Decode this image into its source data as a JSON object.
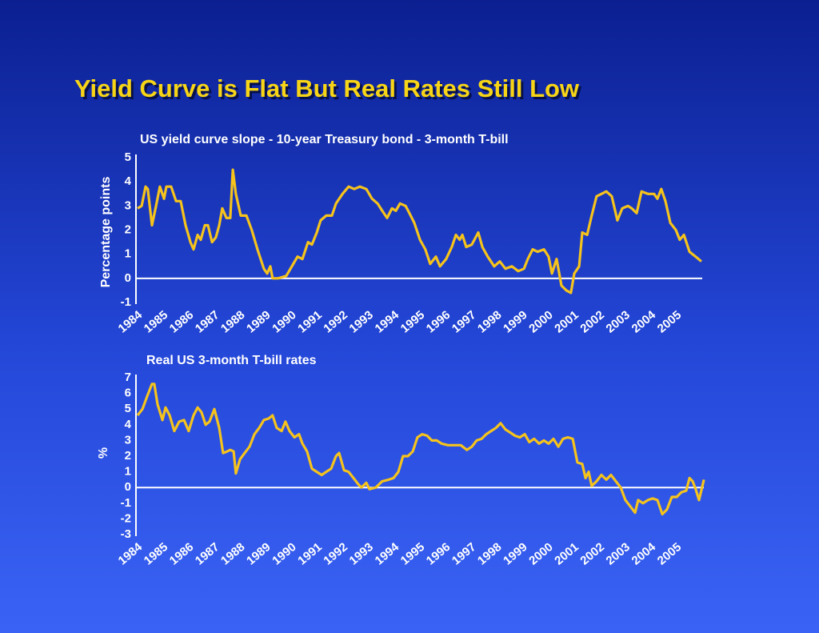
{
  "title": "Yield Curve is Flat But Real Rates Still Low",
  "chart_data": [
    {
      "type": "line",
      "title": "US yield curve slope - 10-year Treasury bond - 3-month T-bill",
      "ylabel": "Percentage points",
      "color": "#f5c31c",
      "xlim": [
        1984,
        2006.2
      ],
      "xticks": [
        1984,
        1985,
        1986,
        1987,
        1988,
        1989,
        1990,
        1991,
        1992,
        1993,
        1994,
        1995,
        1996,
        1997,
        1998,
        1999,
        2000,
        2001,
        2002,
        2003,
        2004,
        2005
      ],
      "ylim": [
        -1,
        5
      ],
      "yticks": [
        -1,
        0,
        1,
        2,
        3,
        4,
        5
      ],
      "x": [
        1984.0,
        1984.16,
        1984.31,
        1984.4,
        1984.56,
        1984.72,
        1984.87,
        1985.03,
        1985.12,
        1985.31,
        1985.5,
        1985.68,
        1985.87,
        1986.06,
        1986.18,
        1986.34,
        1986.46,
        1986.62,
        1986.74,
        1986.9,
        1987.05,
        1987.18,
        1987.3,
        1987.46,
        1987.61,
        1987.71,
        1987.83,
        1988.02,
        1988.24,
        1988.45,
        1988.67,
        1988.92,
        1989.05,
        1989.17,
        1989.26,
        1989.48,
        1989.79,
        1990.01,
        1990.23,
        1990.42,
        1990.64,
        1990.79,
        1990.98,
        1991.13,
        1991.35,
        1991.57,
        1991.73,
        1991.98,
        1992.22,
        1992.44,
        1992.66,
        1992.91,
        1993.13,
        1993.35,
        1993.53,
        1993.72,
        1993.91,
        1994.06,
        1994.22,
        1994.44,
        1994.59,
        1994.78,
        1995.0,
        1995.21,
        1995.4,
        1995.62,
        1995.78,
        1996.02,
        1996.24,
        1996.4,
        1996.55,
        1996.65,
        1996.8,
        1997.02,
        1997.27,
        1997.43,
        1997.64,
        1997.89,
        1998.11,
        1998.33,
        1998.58,
        1998.83,
        1999.05,
        1999.2,
        1999.39,
        1999.58,
        1999.83,
        2000.01,
        2000.14,
        2000.32,
        2000.51,
        2000.7,
        2000.88,
        2001.01,
        2001.2,
        2001.32,
        2001.51,
        2001.69,
        2001.88,
        2002.07,
        2002.26,
        2002.47,
        2002.69,
        2002.88,
        2003.1,
        2003.25,
        2003.44,
        2003.63,
        2003.88,
        2004.12,
        2004.25,
        2004.4,
        2004.56,
        2004.75,
        2004.97,
        2005.12,
        2005.28,
        2005.5,
        2005.74,
        2005.96
      ],
      "values": [
        2.9,
        3.0,
        3.8,
        3.7,
        2.2,
        3.0,
        3.8,
        3.3,
        3.8,
        3.8,
        3.2,
        3.2,
        2.2,
        1.5,
        1.2,
        1.8,
        1.6,
        2.2,
        2.2,
        1.5,
        1.7,
        2.2,
        2.9,
        2.5,
        2.5,
        4.5,
        3.5,
        2.6,
        2.6,
        2.0,
        1.2,
        0.4,
        0.2,
        0.5,
        0.0,
        0.0,
        0.1,
        0.5,
        0.9,
        0.8,
        1.5,
        1.4,
        1.9,
        2.4,
        2.6,
        2.6,
        3.1,
        3.5,
        3.8,
        3.7,
        3.8,
        3.7,
        3.3,
        3.1,
        2.8,
        2.5,
        2.9,
        2.8,
        3.1,
        3.0,
        2.7,
        2.3,
        1.6,
        1.2,
        0.6,
        0.9,
        0.5,
        0.8,
        1.3,
        1.8,
        1.6,
        1.8,
        1.3,
        1.4,
        1.9,
        1.3,
        0.9,
        0.5,
        0.7,
        0.4,
        0.5,
        0.3,
        0.4,
        0.8,
        1.2,
        1.1,
        1.2,
        0.9,
        0.2,
        0.8,
        -0.3,
        -0.5,
        -0.6,
        0.2,
        0.5,
        1.9,
        1.8,
        2.6,
        3.4,
        3.5,
        3.6,
        3.4,
        2.4,
        2.9,
        3.0,
        2.9,
        2.7,
        3.6,
        3.5,
        3.5,
        3.3,
        3.7,
        3.2,
        2.3,
        2.0,
        1.6,
        1.8,
        1.1,
        0.9,
        0.7
      ]
    },
    {
      "type": "line",
      "title": "Real US 3-month T-bill rates",
      "ylabel": "%",
      "color": "#f5c31c",
      "xlim": [
        1984,
        2006.2
      ],
      "xticks": [
        1984,
        1985,
        1986,
        1987,
        1988,
        1989,
        1990,
        1991,
        1992,
        1993,
        1994,
        1995,
        1996,
        1997,
        1998,
        1999,
        2000,
        2001,
        2002,
        2003,
        2004,
        2005
      ],
      "ylim": [
        -3,
        7
      ],
      "yticks": [
        -3,
        -2,
        -1,
        0,
        1,
        2,
        3,
        4,
        5,
        6,
        7
      ],
      "x": [
        1984.0,
        1984.19,
        1984.37,
        1984.56,
        1984.65,
        1984.78,
        1984.97,
        1985.09,
        1985.25,
        1985.43,
        1985.62,
        1985.81,
        1985.99,
        1986.18,
        1986.34,
        1986.49,
        1986.65,
        1986.8,
        1986.99,
        1987.18,
        1987.33,
        1987.49,
        1987.61,
        1987.74,
        1987.83,
        1987.99,
        1988.17,
        1988.36,
        1988.55,
        1988.74,
        1988.92,
        1989.11,
        1989.26,
        1989.42,
        1989.61,
        1989.76,
        1989.92,
        1990.11,
        1990.29,
        1990.42,
        1990.6,
        1990.79,
        1990.98,
        1991.17,
        1991.35,
        1991.54,
        1991.73,
        1991.85,
        1992.04,
        1992.22,
        1992.41,
        1992.6,
        1992.72,
        1992.91,
        1993.03,
        1993.28,
        1993.53,
        1993.78,
        1993.97,
        1994.16,
        1994.34,
        1994.53,
        1994.72,
        1994.9,
        1995.09,
        1995.28,
        1995.46,
        1995.65,
        1995.84,
        1996.09,
        1996.34,
        1996.59,
        1996.83,
        1997.02,
        1997.21,
        1997.4,
        1997.58,
        1997.77,
        1997.96,
        1998.14,
        1998.33,
        1998.52,
        1998.7,
        1998.89,
        1999.08,
        1999.26,
        1999.45,
        1999.64,
        1999.83,
        2000.01,
        2000.2,
        2000.39,
        2000.57,
        2000.76,
        2000.95,
        2001.13,
        2001.32,
        2001.45,
        2001.57,
        2001.69,
        2001.88,
        2002.07,
        2002.26,
        2002.44,
        2002.63,
        2002.82,
        2003.0,
        2003.19,
        2003.38,
        2003.5,
        2003.69,
        2003.88,
        2004.06,
        2004.25,
        2004.44,
        2004.62,
        2004.81,
        2005.0,
        2005.18,
        2005.37,
        2005.5,
        2005.62,
        2005.74,
        2005.87,
        2006.06
      ],
      "values": [
        4.6,
        5.0,
        5.8,
        6.6,
        6.6,
        5.3,
        4.3,
        5.1,
        4.6,
        3.6,
        4.2,
        4.3,
        3.6,
        4.6,
        5.1,
        4.8,
        4.0,
        4.2,
        5.0,
        3.8,
        2.2,
        2.3,
        2.4,
        2.3,
        0.9,
        1.8,
        2.2,
        2.6,
        3.4,
        3.8,
        4.3,
        4.4,
        4.6,
        3.8,
        3.6,
        4.2,
        3.6,
        3.2,
        3.4,
        2.8,
        2.3,
        1.2,
        1.0,
        0.8,
        1.0,
        1.2,
        2.0,
        2.2,
        1.1,
        1.0,
        0.6,
        0.2,
        0.0,
        0.3,
        -0.1,
        0.0,
        0.4,
        0.5,
        0.6,
        1.0,
        2.0,
        2.0,
        2.3,
        3.2,
        3.4,
        3.3,
        3.0,
        3.0,
        2.8,
        2.7,
        2.7,
        2.7,
        2.4,
        2.6,
        3.0,
        3.1,
        3.4,
        3.6,
        3.8,
        4.1,
        3.7,
        3.5,
        3.3,
        3.2,
        3.4,
        2.9,
        3.1,
        2.8,
        3.0,
        2.8,
        3.1,
        2.6,
        3.1,
        3.2,
        3.1,
        1.6,
        1.5,
        0.6,
        1.0,
        0.1,
        0.4,
        0.8,
        0.5,
        0.8,
        0.4,
        0.0,
        -0.8,
        -1.2,
        -1.6,
        -0.8,
        -1.0,
        -0.8,
        -0.7,
        -0.8,
        -1.7,
        -1.4,
        -0.6,
        -0.6,
        -0.3,
        -0.2,
        0.6,
        0.4,
        -0.1,
        -0.8,
        0.5
      ]
    }
  ]
}
